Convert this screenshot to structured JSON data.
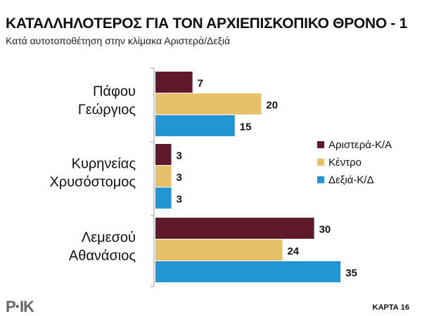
{
  "chart_data": {
    "type": "bar",
    "orientation": "horizontal",
    "title": "ΚΑΤΑΛΛΗΛΟΤΕΡΟΣ  ΓΙΑ ΤΟΝ ΑΡΧΙΕΠΙΣΚΟΠΙΚΟ  ΘΡΟΝΟ - 1",
    "subtitle": "Κατά αυτοτοποθέτηση στην κλίμακα Αριστερά/Δεξιά",
    "categories": [
      [
        "Πάφου",
        "Γεώργιος"
      ],
      [
        "Κυρηνείας",
        "Χρυσόστομος"
      ],
      [
        "Λεμεσού",
        "Αθανάσιος"
      ]
    ],
    "series": [
      {
        "name": "Αριστερά-Κ/Α",
        "color": "#5e1a2b",
        "values": [
          7,
          3,
          30
        ]
      },
      {
        "name": "Κέντρο",
        "color": "#e8c06a",
        "values": [
          20,
          3,
          24
        ]
      },
      {
        "name": "Δεξιά-Κ/Δ",
        "color": "#2196d3",
        "values": [
          15,
          3,
          35
        ]
      }
    ],
    "legend": "right",
    "grid": false,
    "xlim": [
      0,
      35
    ]
  },
  "footer": {
    "logo": "ΡΙΚ",
    "page": "ΚΑΡΤΑ 16"
  }
}
